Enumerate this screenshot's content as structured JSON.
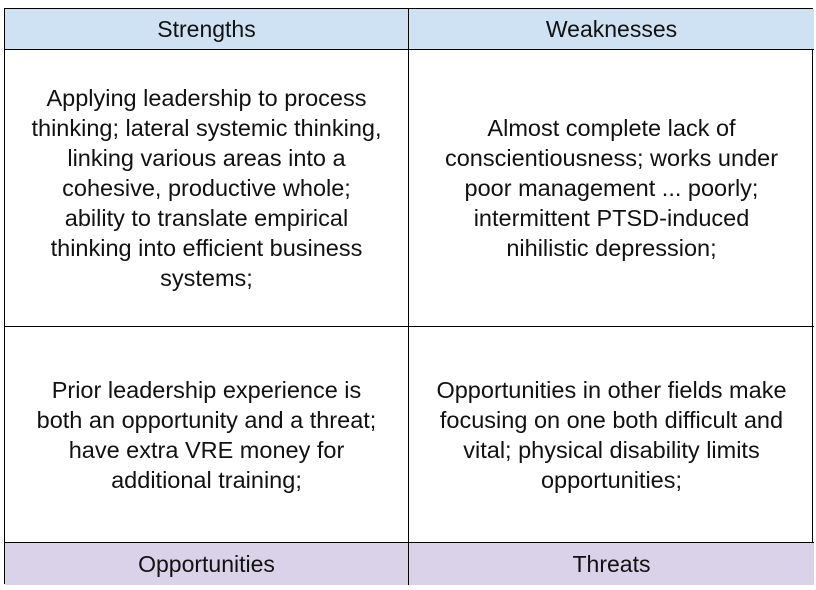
{
  "headers": {
    "strengths": "Strengths",
    "weaknesses": "Weaknesses",
    "opportunities": "Opportunities",
    "threats": "Threats"
  },
  "colors": {
    "top_header_bg": "#cfe2f3",
    "bottom_header_bg": "#d9d2e9",
    "border": "#000000"
  },
  "cells": {
    "strengths_lines": [
      "Applying leadership to process",
      "thinking; lateral systemic thinking,",
      "linking various areas into a",
      "cohesive, productive whole;",
      "ability to translate empirical",
      "thinking into efficient business",
      "systems;"
    ],
    "weaknesses_lines": [
      "Almost complete lack of",
      "conscientiousness; works under",
      "poor management ... poorly;",
      "intermittent PTSD-induced",
      "nihilistic depression;"
    ],
    "opportunities_lines": [
      "Prior leadership experience is",
      "both an opportunity and a threat;",
      "have extra VRE money for",
      "additional training;"
    ],
    "threats_lines": [
      "Opportunities in other fields make",
      "focusing on one both difficult and",
      "vital; physical disability limits",
      "opportunities;"
    ]
  }
}
